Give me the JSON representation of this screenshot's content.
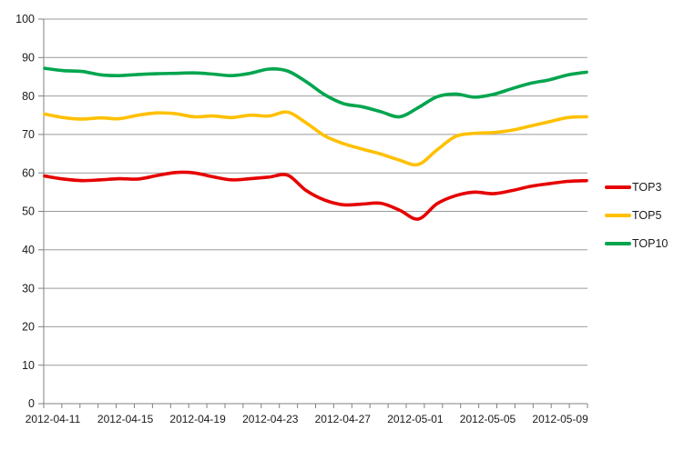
{
  "styles": {
    "background": "#ffffff",
    "gridline_color": "#9b9b9b",
    "axis_color": "#808080",
    "label_color": "#1a1a1a"
  },
  "chart_data": {
    "type": "line",
    "title": "",
    "xlabel": "",
    "ylabel": "",
    "ylim": [
      0,
      100
    ],
    "y_ticks": [
      0,
      10,
      20,
      30,
      40,
      50,
      60,
      70,
      80,
      90,
      100
    ],
    "grid": true,
    "smooth": true,
    "legend_position": "right",
    "x_label_every": 4,
    "x": [
      "2012-04-11",
      "2012-04-12",
      "2012-04-13",
      "2012-04-14",
      "2012-04-15",
      "2012-04-16",
      "2012-04-17",
      "2012-04-18",
      "2012-04-19",
      "2012-04-20",
      "2012-04-21",
      "2012-04-22",
      "2012-04-23",
      "2012-04-24",
      "2012-04-25",
      "2012-04-26",
      "2012-04-27",
      "2012-04-28",
      "2012-04-29",
      "2012-04-30",
      "2012-05-01",
      "2012-05-02",
      "2012-05-03",
      "2012-05-04",
      "2012-05-05",
      "2012-05-06",
      "2012-05-07",
      "2012-05-08",
      "2012-05-09",
      "2012-05-10"
    ],
    "x_tick_labels": [
      "2012-04-11",
      "2012-04-15",
      "2012-04-19",
      "2012-04-23",
      "2012-04-27",
      "2012-05-01",
      "2012-05-05",
      "2012-05-09"
    ],
    "series": [
      {
        "name": "TOP3",
        "color": "#e60000",
        "values": [
          59.2,
          58.4,
          58.0,
          58.2,
          58.5,
          58.4,
          59.3,
          60.1,
          60.0,
          59.0,
          58.2,
          58.5,
          58.9,
          59.4,
          55.4,
          52.9,
          51.7,
          51.9,
          52.1,
          50.3,
          48.0,
          52.0,
          54.1,
          55.0,
          54.6,
          55.4,
          56.5,
          57.2,
          57.8,
          58.0
        ]
      },
      {
        "name": "TOP5",
        "color": "#ffc000",
        "values": [
          75.3,
          74.4,
          74.0,
          74.3,
          74.1,
          75.0,
          75.6,
          75.4,
          74.6,
          74.8,
          74.4,
          75.0,
          74.8,
          75.8,
          73.0,
          69.6,
          67.6,
          66.2,
          64.9,
          63.3,
          62.2,
          66.0,
          69.5,
          70.3,
          70.5,
          71.1,
          72.2,
          73.3,
          74.4,
          74.6
        ]
      },
      {
        "name": "TOP10",
        "color": "#00a54e",
        "values": [
          87.2,
          86.6,
          86.4,
          85.5,
          85.3,
          85.6,
          85.8,
          85.9,
          86.0,
          85.7,
          85.3,
          85.9,
          87.0,
          86.5,
          83.7,
          80.3,
          78.0,
          77.2,
          75.9,
          74.6,
          77.0,
          79.8,
          80.5,
          79.7,
          80.4,
          81.9,
          83.3,
          84.2,
          85.5,
          86.2
        ]
      }
    ]
  }
}
